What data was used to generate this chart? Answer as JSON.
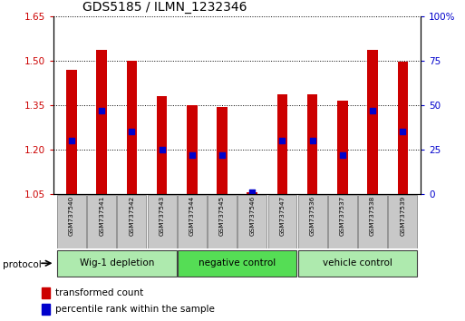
{
  "title": "GDS5185 / ILMN_1232346",
  "samples": [
    "GSM737540",
    "GSM737541",
    "GSM737542",
    "GSM737543",
    "GSM737544",
    "GSM737545",
    "GSM737546",
    "GSM737547",
    "GSM737536",
    "GSM737537",
    "GSM737538",
    "GSM737539"
  ],
  "bar_values": [
    1.47,
    1.535,
    1.5,
    1.38,
    1.35,
    1.345,
    1.057,
    1.385,
    1.385,
    1.365,
    1.535,
    1.495
  ],
  "blue_values": [
    30,
    47,
    35,
    25,
    22,
    22,
    1,
    30,
    30,
    22,
    47,
    35
  ],
  "ylim_left": [
    1.05,
    1.65
  ],
  "ylim_right": [
    0,
    100
  ],
  "yticks_left": [
    1.05,
    1.2,
    1.35,
    1.5,
    1.65
  ],
  "yticks_right": [
    0,
    25,
    50,
    75,
    100
  ],
  "groups": [
    {
      "label": "Wig-1 depletion",
      "start": 0,
      "end": 3
    },
    {
      "label": "negative control",
      "start": 4,
      "end": 7
    },
    {
      "label": "vehicle control",
      "start": 8,
      "end": 11
    }
  ],
  "group_colors": [
    "#aeeaae",
    "#55dd55",
    "#aeeaae"
  ],
  "bar_color": "#cc0000",
  "blue_color": "#0000cc",
  "bar_width": 0.35,
  "tick_color_left": "#cc0000",
  "tick_color_right": "#0000cc",
  "sample_box_color": "#c8c8c8"
}
